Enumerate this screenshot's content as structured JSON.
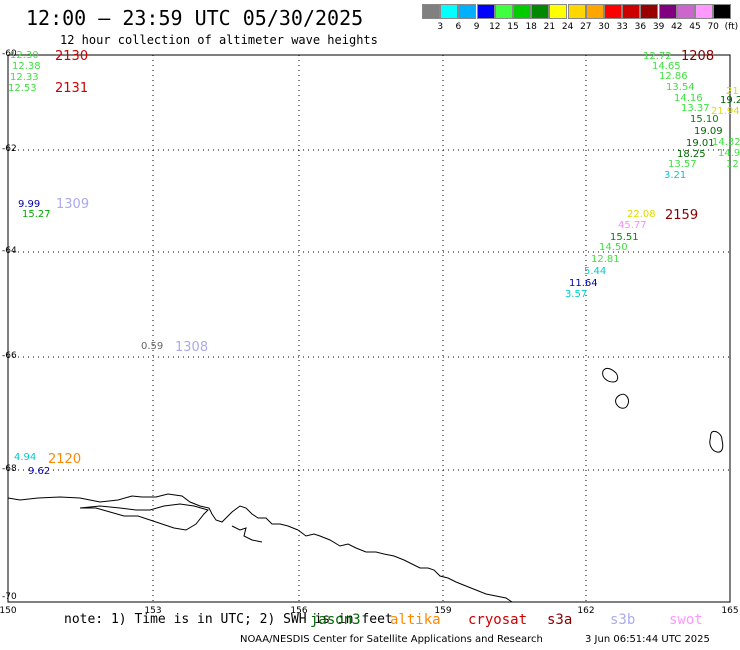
{
  "header": {
    "title": "12:00 – 23:59 UTC 05/30/2025",
    "subtitle": "12 hour collection of altimeter wave heights"
  },
  "color_scale": {
    "swatches": [
      "#808080",
      "#00ffff",
      "#00b0ff",
      "#0000ff",
      "#40ff40",
      "#00cc00",
      "#008800",
      "#ffff00",
      "#ffd700",
      "#ffa500",
      "#ff0000",
      "#cc0000",
      "#990000",
      "#800080",
      "#cc66cc",
      "#ff99ff",
      "#000000"
    ],
    "ticks": [
      "3",
      "6",
      "9",
      "12",
      "15",
      "18",
      "21",
      "24",
      "27",
      "30",
      "33",
      "36",
      "39",
      "42",
      "45",
      "70",
      "(ft)"
    ]
  },
  "axes": {
    "lat_labels": [
      "-60",
      "-62",
      "-64",
      "-66",
      "-68",
      "-70"
    ],
    "lon_labels": [
      "150",
      "153",
      "156",
      "159",
      "162",
      "165"
    ]
  },
  "observations": [
    {
      "text": "12.30",
      "color": "#40e040"
    },
    {
      "text": "12.38",
      "color": "#40e040"
    },
    {
      "text": "12.33",
      "color": "#40e040"
    },
    {
      "text": "12.53",
      "color": "#40e040"
    },
    {
      "text": "9.99",
      "color": "#0000aa"
    },
    {
      "text": "15.27",
      "color": "#00aa00"
    },
    {
      "text": "0.59",
      "color": "#666666"
    },
    {
      "text": "4.94",
      "color": "#00cccc"
    },
    {
      "text": "9.62",
      "color": "#0000aa"
    },
    {
      "text": "12.72",
      "color": "#40e040"
    },
    {
      "text": "14.65",
      "color": "#40e040"
    },
    {
      "text": "12.86",
      "color": "#40e040"
    },
    {
      "text": "13.54",
      "color": "#40e040"
    },
    {
      "text": "14.16",
      "color": "#40e040"
    },
    {
      "text": "13.37",
      "color": "#40e040"
    },
    {
      "text": "15.10",
      "color": "#008800"
    },
    {
      "text": "19.09",
      "color": "#006600"
    },
    {
      "text": "19.01",
      "color": "#006600"
    },
    {
      "text": "18.25",
      "color": "#006600"
    },
    {
      "text": "13.57",
      "color": "#40e040"
    },
    {
      "text": "3.21",
      "color": "#00cccc"
    },
    {
      "text": "21",
      "color": "#dddd00"
    },
    {
      "text": "19.2",
      "color": "#006600"
    },
    {
      "text": "21.94",
      "color": "#dddd00"
    },
    {
      "text": "14.32",
      "color": "#40e040"
    },
    {
      "text": "14.9",
      "color": "#40e040"
    },
    {
      "text": "12",
      "color": "#40e040"
    },
    {
      "text": "22.08",
      "color": "#dddd00"
    },
    {
      "text": "45.77",
      "color": "#ff88ff"
    },
    {
      "text": "15.51",
      "color": "#008800"
    },
    {
      "text": "14.50",
      "color": "#40e040"
    },
    {
      "text": "12.81",
      "color": "#40e040"
    },
    {
      "text": "5.44",
      "color": "#00cccc"
    },
    {
      "text": "11.64",
      "color": "#0000aa"
    },
    {
      "text": "3.57",
      "color": "#00cccc"
    }
  ],
  "track_times": [
    {
      "text": "2130",
      "color": "#cc0000"
    },
    {
      "text": "2131",
      "color": "#cc0000"
    },
    {
      "text": "1309",
      "color": "#aaaaee"
    },
    {
      "text": "1308",
      "color": "#aaaaee"
    },
    {
      "text": "2120",
      "color": "#ff8800"
    },
    {
      "text": "1208",
      "color": "#880000"
    },
    {
      "text": "2159",
      "color": "#880000"
    }
  ],
  "footer": {
    "note": "note: 1) Time is in UTC; 2) SWH is in feet",
    "satellites": [
      {
        "name": "jason3",
        "color": "#006600"
      },
      {
        "name": "altika",
        "color": "#ff8800"
      },
      {
        "name": "cryosat",
        "color": "#cc0000"
      },
      {
        "name": "s3a",
        "color": "#880000"
      },
      {
        "name": "s3b",
        "color": "#aaaaee"
      },
      {
        "name": "swot",
        "color": "#ff99ff"
      }
    ],
    "credit": "NOAA/NESDIS Center for Satellite Applications and Research",
    "timestamp": "3 Jun 06:51:44 UTC 2025"
  }
}
